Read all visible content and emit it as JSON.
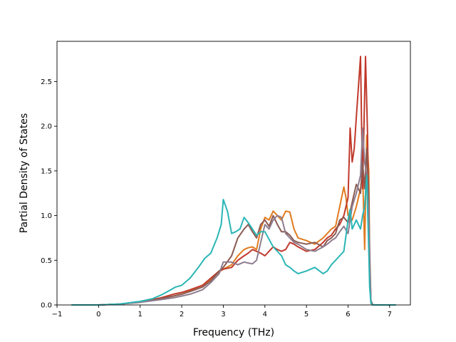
{
  "chart_data": {
    "type": "line",
    "title": "",
    "xlabel": "Frequency (THz)",
    "ylabel": "Partial Density of States",
    "xlim": [
      -1.0,
      7.5
    ],
    "ylim": [
      0.0,
      2.95
    ],
    "xticks": [
      -1,
      0,
      1,
      2,
      3,
      4,
      5,
      6,
      7
    ],
    "yticks": [
      0.0,
      0.5,
      1.0,
      1.5,
      2.0,
      2.5
    ],
    "xtick_labels": [
      "−1",
      "0",
      "1",
      "2",
      "3",
      "4",
      "5",
      "6",
      "7"
    ],
    "ytick_labels": [
      "0.0",
      "0.5",
      "1.0",
      "1.5",
      "2.0",
      "2.5"
    ],
    "grid": false,
    "legend": "none",
    "series": [
      {
        "color": "#e07b1f",
        "x": [
          -0.65,
          0,
          0.5,
          1,
          1.5,
          1.8,
          2,
          2.2,
          2.5,
          2.7,
          2.9,
          3,
          3.2,
          3.35,
          3.5,
          3.6,
          3.7,
          3.8,
          3.9,
          4,
          4.1,
          4.2,
          4.3,
          4.4,
          4.5,
          4.6,
          4.7,
          4.8,
          5,
          5.2,
          5.4,
          5.5,
          5.6,
          5.7,
          5.8,
          5.9,
          5.95,
          6,
          6.1,
          6.2,
          6.3,
          6.35,
          6.4,
          6.45,
          6.5,
          6.52,
          6.55,
          6.6,
          7.15
        ],
        "y": [
          0,
          0,
          0.01,
          0.03,
          0.07,
          0.1,
          0.12,
          0.16,
          0.22,
          0.28,
          0.37,
          0.4,
          0.45,
          0.55,
          0.62,
          0.64,
          0.65,
          0.62,
          0.85,
          0.98,
          0.95,
          1.05,
          1.0,
          0.95,
          1.05,
          1.04,
          0.85,
          0.75,
          0.72,
          0.68,
          0.75,
          0.8,
          0.85,
          0.88,
          1.1,
          1.32,
          1.2,
          1.0,
          0.95,
          1.1,
          1.3,
          1.5,
          0.62,
          1.9,
          1.5,
          0.5,
          0.02,
          0,
          0
        ]
      },
      {
        "color": "#c0392b",
        "x": [
          -0.65,
          0,
          0.5,
          1,
          1.5,
          1.8,
          2,
          2.2,
          2.5,
          2.7,
          2.9,
          3,
          3.2,
          3.35,
          3.5,
          3.6,
          3.7,
          3.8,
          3.9,
          4,
          4.1,
          4.2,
          4.3,
          4.4,
          4.5,
          4.6,
          4.7,
          4.8,
          5,
          5.2,
          5.4,
          5.5,
          5.6,
          5.7,
          5.8,
          5.9,
          6,
          6.05,
          6.1,
          6.15,
          6.2,
          6.3,
          6.35,
          6.42,
          6.47,
          6.5,
          6.52,
          6.55,
          6.6,
          7.15
        ],
        "y": [
          0,
          0,
          0.01,
          0.03,
          0.08,
          0.12,
          0.14,
          0.17,
          0.22,
          0.3,
          0.38,
          0.4,
          0.42,
          0.5,
          0.55,
          0.58,
          0.62,
          0.6,
          0.58,
          0.55,
          0.6,
          0.65,
          0.62,
          0.6,
          0.62,
          0.7,
          0.68,
          0.65,
          0.6,
          0.62,
          0.7,
          0.75,
          0.78,
          0.85,
          0.9,
          1.0,
          1.2,
          1.98,
          1.6,
          1.75,
          2.1,
          2.78,
          1.3,
          2.78,
          1.9,
          0.9,
          0.3,
          0.02,
          0,
          0
        ]
      },
      {
        "color": "#8b5a52",
        "x": [
          -0.65,
          0,
          0.5,
          1,
          1.5,
          1.8,
          2,
          2.2,
          2.5,
          2.7,
          2.9,
          3,
          3.2,
          3.35,
          3.5,
          3.6,
          3.7,
          3.8,
          3.9,
          4,
          4.1,
          4.2,
          4.3,
          4.4,
          4.5,
          4.6,
          4.7,
          4.8,
          5,
          5.2,
          5.4,
          5.5,
          5.6,
          5.7,
          5.8,
          5.9,
          6,
          6.1,
          6.2,
          6.3,
          6.35,
          6.4,
          6.45,
          6.5,
          6.52,
          6.55,
          6.6,
          7.15
        ],
        "y": [
          0,
          0,
          0.01,
          0.03,
          0.07,
          0.1,
          0.12,
          0.15,
          0.2,
          0.27,
          0.38,
          0.42,
          0.55,
          0.75,
          0.85,
          0.9,
          0.82,
          0.75,
          0.9,
          0.95,
          0.88,
          1.0,
          0.9,
          0.82,
          0.82,
          0.78,
          0.72,
          0.7,
          0.68,
          0.7,
          0.65,
          0.72,
          0.75,
          0.8,
          0.95,
          0.98,
          0.92,
          1.15,
          1.35,
          1.25,
          1.6,
          1.3,
          1.75,
          1.2,
          0.6,
          0.05,
          0,
          0
        ]
      },
      {
        "color": "#8e7c8e",
        "x": [
          -0.65,
          0,
          0.5,
          1,
          1.5,
          1.8,
          2,
          2.2,
          2.5,
          2.7,
          2.9,
          3,
          3.2,
          3.35,
          3.5,
          3.6,
          3.7,
          3.8,
          3.9,
          4,
          4.1,
          4.2,
          4.3,
          4.4,
          4.5,
          4.6,
          4.7,
          4.8,
          5,
          5.2,
          5.4,
          5.5,
          5.6,
          5.7,
          5.8,
          5.9,
          6,
          6.1,
          6.2,
          6.3,
          6.35,
          6.4,
          6.45,
          6.5,
          6.52,
          6.55,
          6.6,
          7.15
        ],
        "y": [
          0,
          0,
          0.01,
          0.03,
          0.06,
          0.08,
          0.1,
          0.12,
          0.17,
          0.25,
          0.35,
          0.48,
          0.48,
          0.45,
          0.48,
          0.47,
          0.46,
          0.5,
          0.7,
          0.9,
          0.85,
          0.95,
          1.0,
          0.98,
          0.8,
          0.75,
          0.7,
          0.68,
          0.62,
          0.6,
          0.65,
          0.68,
          0.72,
          0.75,
          0.82,
          0.88,
          0.8,
          1.1,
          1.25,
          1.45,
          1.98,
          1.6,
          1.45,
          1.0,
          0.5,
          0.05,
          0,
          0
        ]
      },
      {
        "color": "#2ab5b5",
        "x": [
          -0.65,
          0,
          0.5,
          1,
          1.3,
          1.5,
          1.7,
          1.85,
          2,
          2.2,
          2.4,
          2.55,
          2.7,
          2.85,
          2.95,
          3,
          3.1,
          3.2,
          3.3,
          3.4,
          3.5,
          3.6,
          3.7,
          3.8,
          3.9,
          4,
          4.2,
          4.4,
          4.5,
          4.6,
          4.7,
          4.8,
          5,
          5.2,
          5.4,
          5.5,
          5.6,
          5.7,
          5.8,
          5.9,
          6,
          6.05,
          6.1,
          6.2,
          6.3,
          6.35,
          6.4,
          6.45,
          6.5,
          6.52,
          6.55,
          6.6,
          7.15
        ],
        "y": [
          0,
          0,
          0.01,
          0.04,
          0.07,
          0.11,
          0.16,
          0.2,
          0.22,
          0.3,
          0.42,
          0.52,
          0.58,
          0.75,
          0.9,
          1.18,
          1.05,
          0.8,
          0.82,
          0.85,
          0.98,
          0.92,
          0.85,
          0.78,
          0.82,
          0.82,
          0.65,
          0.55,
          0.45,
          0.42,
          0.38,
          0.35,
          0.38,
          0.42,
          0.35,
          0.38,
          0.45,
          0.5,
          0.55,
          0.6,
          0.95,
          1.07,
          0.85,
          0.95,
          0.85,
          1.0,
          1.1,
          1.45,
          0.6,
          0.2,
          0.02,
          0,
          0
        ]
      }
    ]
  }
}
